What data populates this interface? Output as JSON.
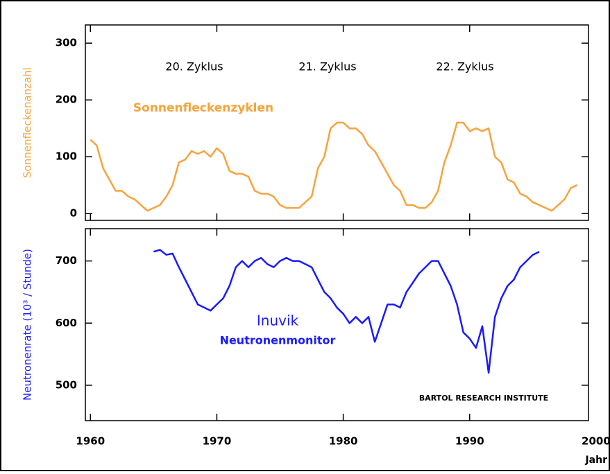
{
  "chart_data": [
    {
      "type": "line",
      "y_label": "Sonnenfleckenanzahl",
      "annotations": [
        "20. Zyklus",
        "21. Zyklus",
        "22. Zyklus"
      ],
      "xlim": [
        1959.6,
        1999.4
      ],
      "xticks": [
        1960,
        1970,
        1980,
        1990,
        2000
      ],
      "ylim": [
        -12,
        332
      ],
      "yticks": [
        0,
        100,
        200,
        300
      ],
      "series": [
        {
          "name": "Sonnenfleckenzyklen",
          "color": "#f7a33c",
          "x": [
            1960,
            1960.5,
            1961,
            1961.5,
            1962,
            1962.5,
            1963,
            1963.5,
            1964,
            1964.5,
            1965,
            1965.5,
            1966,
            1966.5,
            1967,
            1967.5,
            1968,
            1968.5,
            1969,
            1969.5,
            1970,
            1970.5,
            1971,
            1971.5,
            1972,
            1972.5,
            1973,
            1973.5,
            1974,
            1974.5,
            1975,
            1975.5,
            1976,
            1976.5,
            1977,
            1977.5,
            1978,
            1978.5,
            1979,
            1979.5,
            1980,
            1980.5,
            1981,
            1981.5,
            1982,
            1982.5,
            1983,
            1983.5,
            1984,
            1984.5,
            1985,
            1985.5,
            1986,
            1986.5,
            1987,
            1987.5,
            1988,
            1988.5,
            1989,
            1989.5,
            1990,
            1990.5,
            1991,
            1991.5,
            1992,
            1992.5,
            1993,
            1993.5,
            1994,
            1994.5,
            1995,
            1995.5,
            1996,
            1996.5,
            1997,
            1997.5,
            1998,
            1998.5
          ],
          "values": [
            130,
            120,
            80,
            60,
            40,
            40,
            30,
            25,
            15,
            5,
            10,
            15,
            30,
            50,
            90,
            95,
            110,
            105,
            110,
            100,
            115,
            105,
            75,
            70,
            70,
            65,
            40,
            35,
            35,
            30,
            15,
            10,
            10,
            10,
            20,
            30,
            80,
            100,
            150,
            160,
            160,
            150,
            150,
            140,
            120,
            110,
            90,
            70,
            50,
            40,
            15,
            15,
            10,
            10,
            20,
            40,
            90,
            120,
            160,
            160,
            145,
            150,
            145,
            150,
            100,
            90,
            60,
            55,
            35,
            30,
            20,
            15,
            10,
            5,
            15,
            25,
            45,
            50
          ]
        }
      ]
    },
    {
      "type": "line",
      "y_label": "Neutronenrate (10³ / Stunde)",
      "x_label": "Jahr",
      "annotations": [
        "Neutronenmonitor",
        "BARTOL RESEARCH INSTITUTE"
      ],
      "xlim": [
        1959.6,
        1999.4
      ],
      "xticks": [
        1960,
        1970,
        1980,
        1990,
        2000
      ],
      "ylim": [
        443,
        752
      ],
      "yticks": [
        500,
        600,
        700
      ],
      "series": [
        {
          "name": "Inuvik",
          "color": "#1a1aff",
          "x": [
            1965,
            1965.5,
            1966,
            1966.5,
            1967,
            1967.5,
            1968,
            1968.5,
            1969,
            1969.5,
            1970,
            1970.5,
            1971,
            1971.5,
            1972,
            1972.5,
            1973,
            1973.5,
            1974,
            1974.5,
            1975,
            1975.5,
            1976,
            1976.5,
            1977,
            1977.5,
            1978,
            1978.5,
            1979,
            1979.5,
            1980,
            1980.5,
            1981,
            1981.5,
            1982,
            1982.5,
            1983,
            1983.5,
            1984,
            1984.5,
            1985,
            1985.5,
            1986,
            1986.5,
            1987,
            1987.5,
            1988,
            1988.5,
            1989,
            1989.5,
            1990,
            1990.5,
            1991,
            1991.5,
            1992,
            1992.5,
            1993,
            1993.5,
            1994,
            1994.5,
            1995,
            1995.5
          ],
          "values": [
            715,
            718,
            710,
            712,
            690,
            670,
            650,
            630,
            625,
            620,
            630,
            640,
            660,
            690,
            700,
            690,
            700,
            705,
            695,
            690,
            700,
            705,
            700,
            700,
            695,
            690,
            670,
            650,
            640,
            625,
            615,
            600,
            610,
            600,
            610,
            570,
            600,
            630,
            630,
            625,
            650,
            665,
            680,
            690,
            700,
            700,
            680,
            660,
            630,
            585,
            575,
            560,
            595,
            520,
            610,
            640,
            660,
            670,
            690,
            700,
            710,
            715
          ]
        }
      ]
    }
  ]
}
